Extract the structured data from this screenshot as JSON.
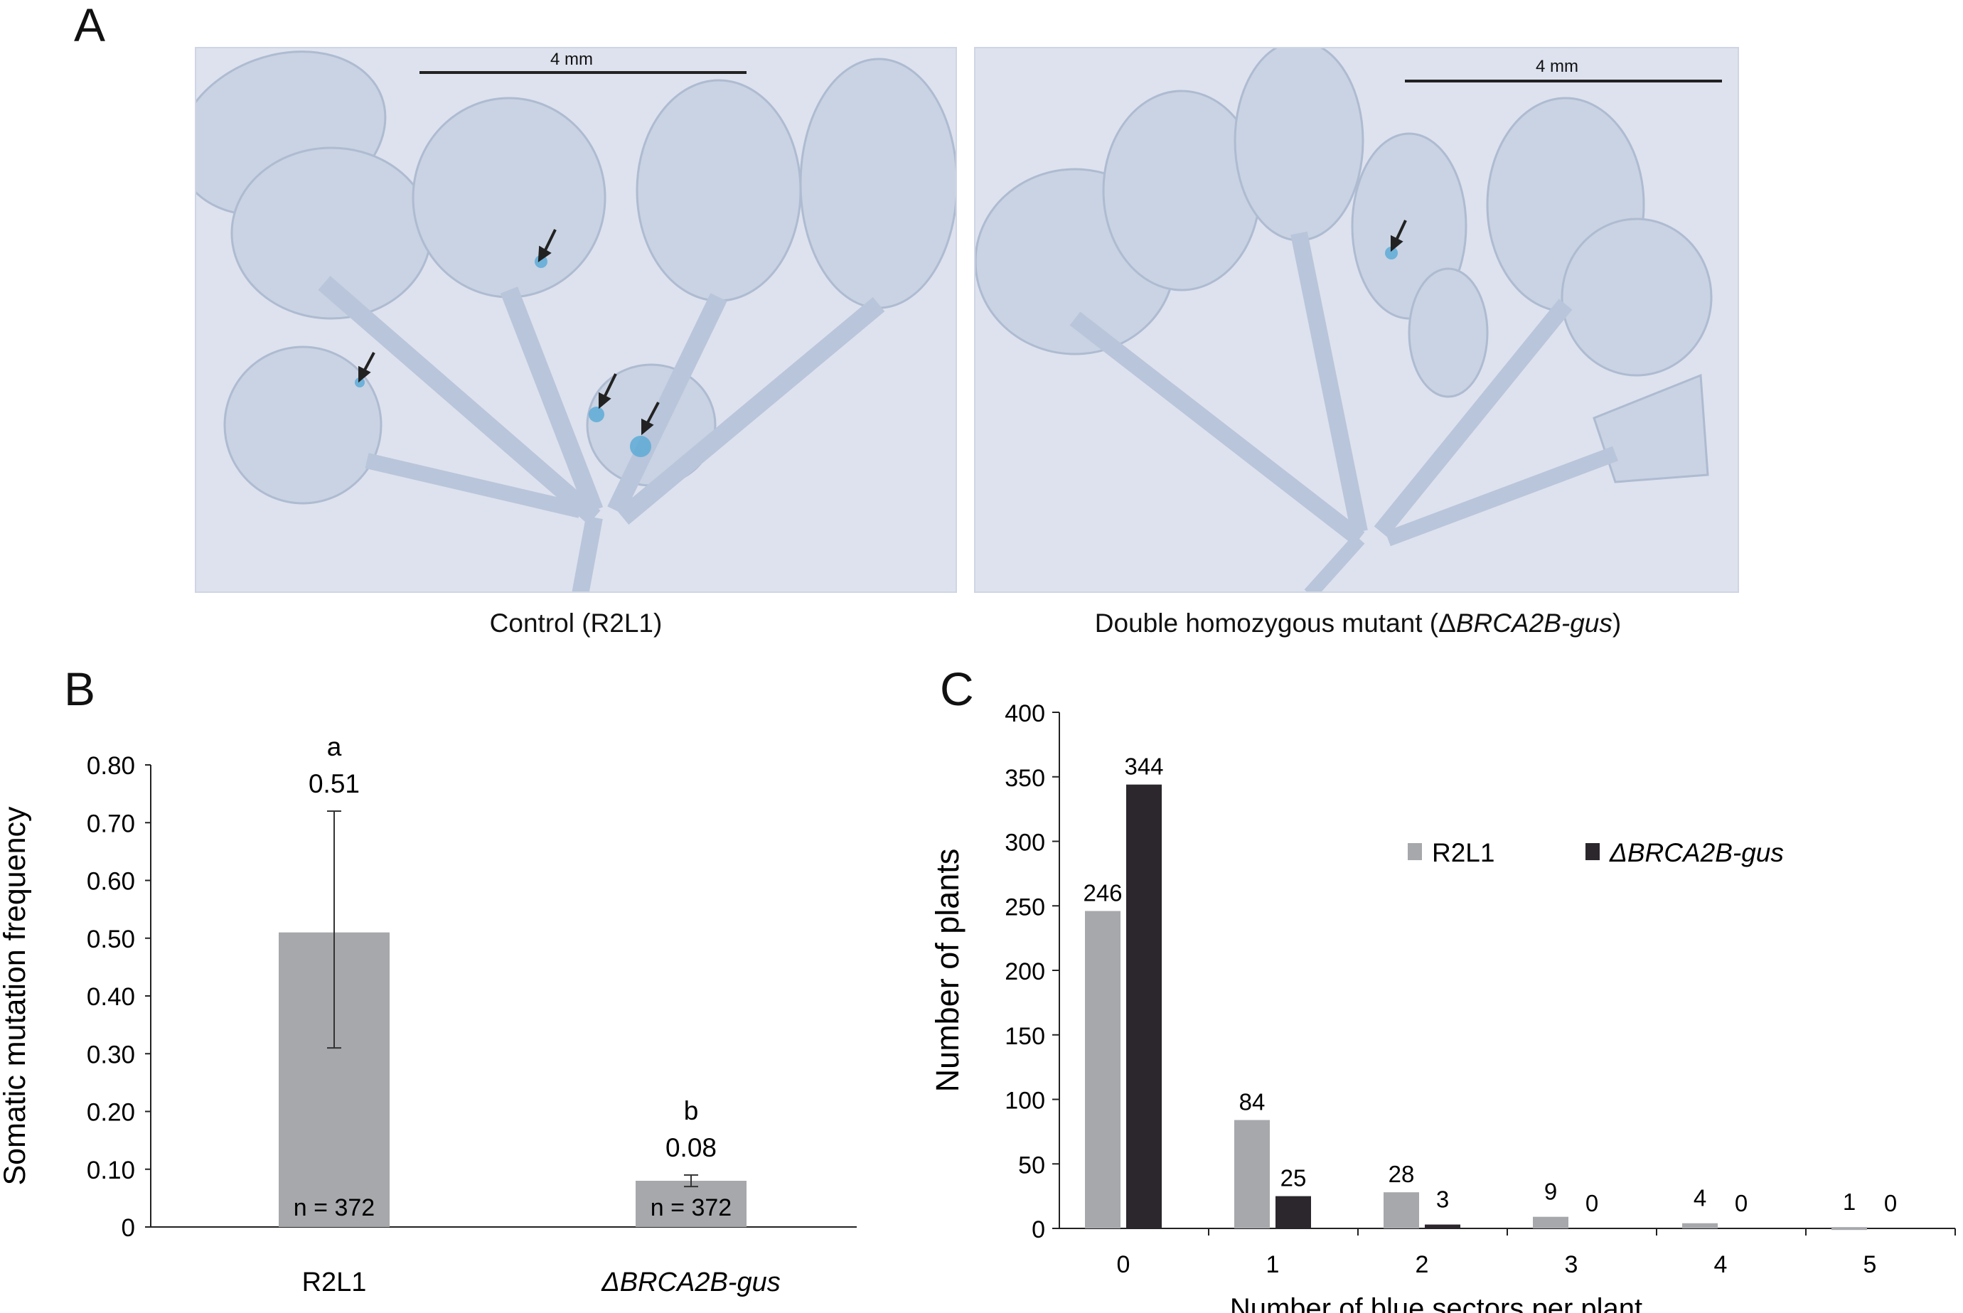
{
  "panels": {
    "a": {
      "letter": "A",
      "left_photo": {
        "scale_label": "4 mm",
        "caption": "Control (R2L1)"
      },
      "right_photo": {
        "scale_label": "4 mm",
        "caption_prefix": "Double homozygous mutant (Δ",
        "caption_italic": "BRCA2B-gus",
        "caption_suffix": ")"
      }
    },
    "b": {
      "letter": "B"
    },
    "c": {
      "letter": "C"
    }
  },
  "colors": {
    "gray_bar": "#a6a8ab",
    "dark_bar": "#2b272c",
    "leaf": "#c9d3e3",
    "leaf_edge": "#aebbd1",
    "stain": "#57a9d6"
  },
  "chart_data": [
    {
      "id": "B",
      "type": "bar",
      "ylabel": "Somatic mutation frequency",
      "categories": [
        "R2L1",
        "ΔBRCA2B-gus"
      ],
      "category_italic": [
        false,
        true
      ],
      "values": [
        0.51,
        0.08
      ],
      "value_labels": [
        "0.51",
        "0.08"
      ],
      "error_upper": [
        0.72,
        0.09
      ],
      "error_lower": [
        0.31,
        0.07
      ],
      "significance": [
        "a",
        "b"
      ],
      "n_labels": [
        "n = 372",
        "n = 372"
      ],
      "ylim": [
        0,
        0.8
      ],
      "yticks": [
        0,
        0.1,
        0.2,
        0.3,
        0.4,
        0.5,
        0.6,
        0.7,
        0.8
      ],
      "ytick_labels": [
        "0",
        "0.10",
        "0.20",
        "0.30",
        "0.40",
        "0.50",
        "0.60",
        "0.70",
        "0.80"
      ],
      "grid": false
    },
    {
      "id": "C",
      "type": "bar",
      "xlabel": "Number of blue sectors per plant",
      "ylabel": "Number of plants",
      "categories": [
        "0",
        "1",
        "2",
        "3",
        "4",
        "5"
      ],
      "series": [
        {
          "name": "R2L1",
          "values": [
            246,
            84,
            28,
            9,
            4,
            1
          ]
        },
        {
          "name": "ΔBRCA2B-gus",
          "values": [
            344,
            25,
            3,
            0,
            0,
            0
          ]
        }
      ],
      "ylim": [
        0,
        400
      ],
      "yticks": [
        0,
        50,
        100,
        150,
        200,
        250,
        300,
        350,
        400
      ],
      "legend_position": "top-right",
      "grid": false
    }
  ]
}
